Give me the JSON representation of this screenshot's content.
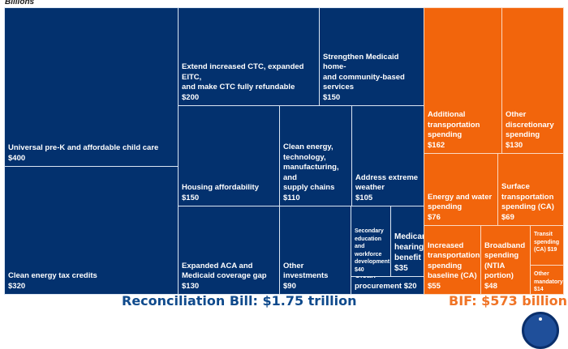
{
  "chart_data": {
    "type": "treemap",
    "unit_label": "Billions",
    "colors": {
      "reconciliation": "#03316e",
      "bif": "#f2650c"
    },
    "groups": [
      {
        "name": "Reconciliation Bill",
        "total_label": "Reconciliation Bill: $1.75 trillion",
        "total_billions": 1750,
        "items": [
          {
            "label": "Universal pre-K and affordable child care",
            "value_label": "$400",
            "value": 400
          },
          {
            "label": "Clean energy tax credits",
            "value_label": "$320",
            "value": 320
          },
          {
            "label": "Extend increased CTC, expanded EITC,\nand make CTC fully refundable",
            "value_label": "$200",
            "value": 200
          },
          {
            "label": "Strengthen Medicaid home-\nand community-based\nservices",
            "value_label": "$150",
            "value": 150
          },
          {
            "label": "Housing affordability",
            "value_label": "$150",
            "value": 150
          },
          {
            "label": "Clean energy,\ntechnology,\nmanufacturing, and\nsupply chains",
            "value_label": "$110",
            "value": 110
          },
          {
            "label": "Address extreme\nweather",
            "value_label": "$105",
            "value": 105
          },
          {
            "label": "Expanded ACA and\nMedicaid coverage gap",
            "value_label": "$130",
            "value": 130
          },
          {
            "label": "Other investments",
            "value_label": "$90",
            "value": 90
          },
          {
            "label": "Secondary\neducation\nand\nworkforce\ndevelopment",
            "value_label": "$40",
            "value": 40
          },
          {
            "label": "Medicare\nhearing\nbenefit",
            "value_label": "$35",
            "value": 35
          },
          {
            "label": "Clean procurement $20",
            "value_label": "",
            "value": 20
          }
        ]
      },
      {
        "name": "BIF",
        "total_label": "BIF: $573 billion",
        "total_billions": 573,
        "items": [
          {
            "label": "Additional\ntransportation\nspending",
            "value_label": "$162",
            "value": 162
          },
          {
            "label": "Other\ndiscretionary\nspending",
            "value_label": "$130",
            "value": 130
          },
          {
            "label": "Energy and water\nspending",
            "value_label": "$76",
            "value": 76
          },
          {
            "label": "Surface\ntransportation\nspending (CA)",
            "value_label": "$69",
            "value": 69
          },
          {
            "label": "Increased\ntransportation\nspending\nbaseline (CA)",
            "value_label": "$55",
            "value": 55
          },
          {
            "label": "Broadband\nspending\n(NTIA\nportion)",
            "value_label": "$48",
            "value": 48
          },
          {
            "label": "Transit\nspending\n(CA) $19",
            "value_label": "",
            "value": 19
          },
          {
            "label": "Other\nmandatory",
            "value_label": "$14",
            "value": 14
          }
        ]
      }
    ]
  },
  "logo": {
    "icon": "seal-logo-icon"
  }
}
